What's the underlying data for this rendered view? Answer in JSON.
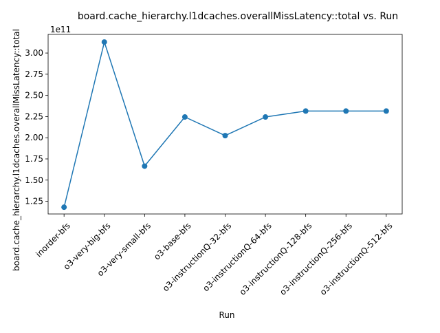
{
  "chart_data": {
    "type": "line",
    "title": "board.cache_hierarchy.l1dcaches.overallMissLatency::total vs. Run",
    "xlabel": "Run",
    "ylabel": "board.cache_hierarchy.l1dcaches.overallMissLatency::total",
    "y_offset_label": "1e11",
    "y_scale": 100000000000,
    "categories": [
      "inorder-bfs",
      "o3-very-big-bfs",
      "o3-very-small-bfs",
      "o3-base-bfs",
      "o3-instructionQ-32-bfs",
      "o3-instructionQ-64-bfs",
      "o3-instructionQ-128-bfs",
      "o3-instructionQ-256-bfs",
      "o3-instructionQ-512-bfs"
    ],
    "series": [
      {
        "values": [
          118000000000,
          313000000000,
          166500000000,
          224500000000,
          202500000000,
          224500000000,
          231500000000,
          231500000000,
          231500000000
        ],
        "color": "#1f77b4",
        "marker": "circle"
      }
    ],
    "ylim": [
      110000000000,
      322000000000
    ],
    "y_ticks": [
      125000000000,
      150000000000,
      175000000000,
      200000000000,
      225000000000,
      250000000000,
      275000000000,
      300000000000
    ],
    "y_tick_labels": [
      "1.25",
      "1.50",
      "1.75",
      "2.00",
      "2.25",
      "2.50",
      "2.75",
      "3.00"
    ],
    "grid": false,
    "legend": "none"
  }
}
